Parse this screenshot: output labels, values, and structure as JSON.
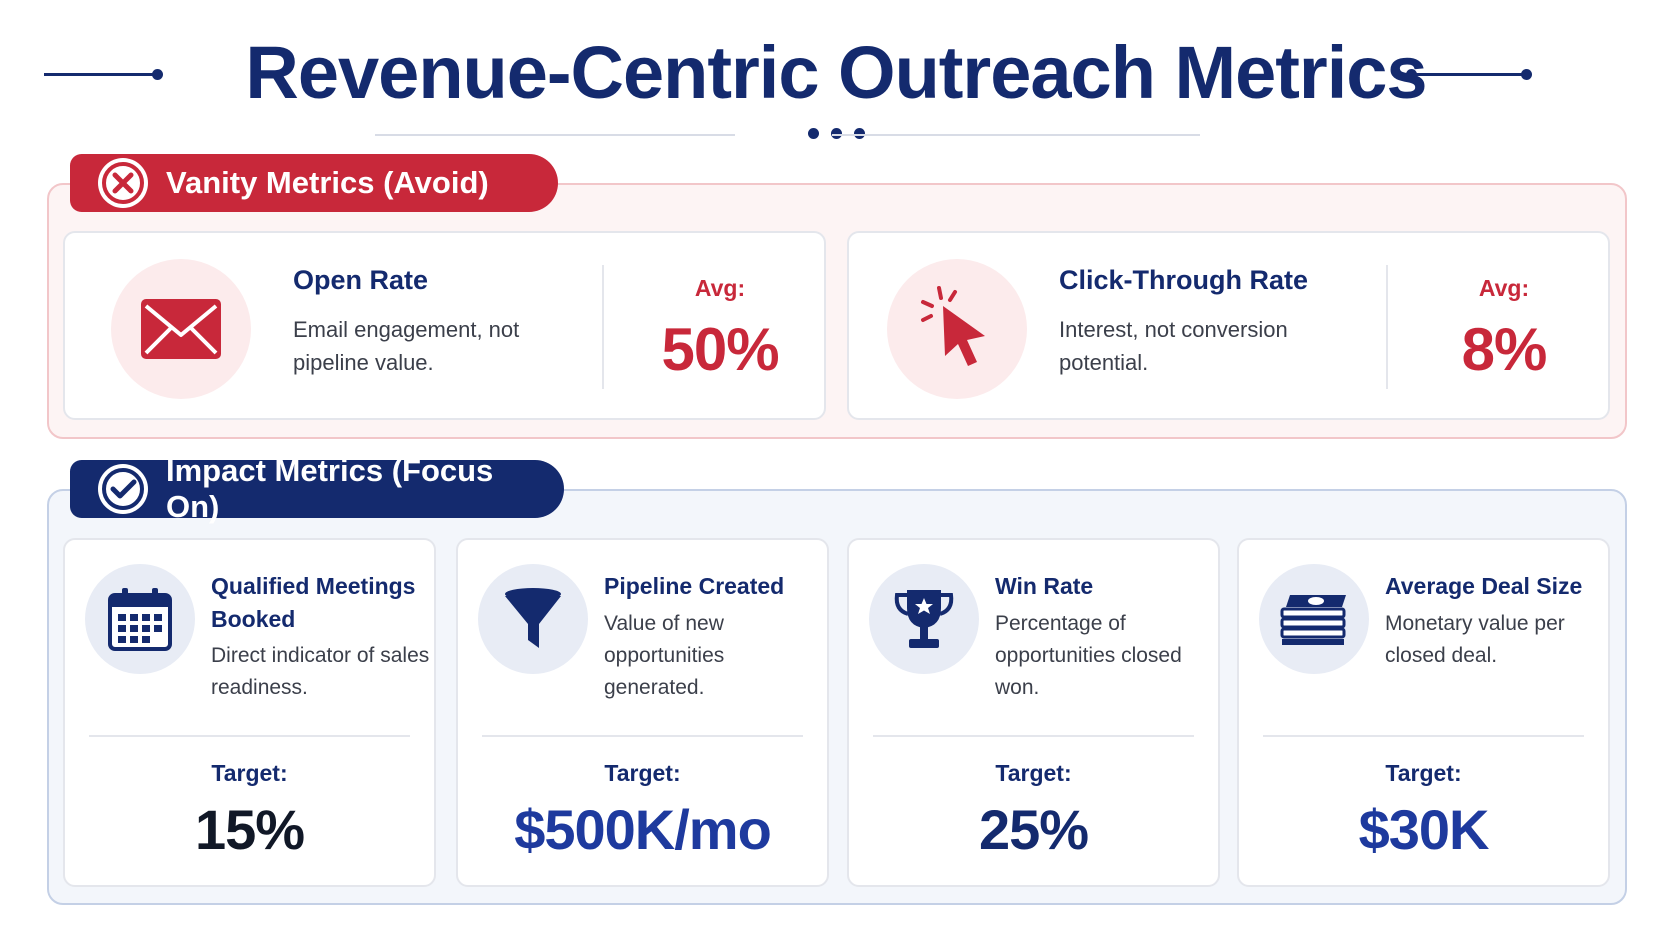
{
  "title": "Revenue-Centric Outreach Metrics",
  "colors": {
    "navy": "#142a6e",
    "red": "#c8283a",
    "black": "#111827",
    "blue": "#1e3a9e"
  },
  "vanity": {
    "heading": "Vanity Metrics (Avoid)",
    "badge_icon": "x-circle-icon",
    "cards": [
      {
        "name": "Open Rate",
        "desc": "Email engagement, not pipeline value.",
        "avg_label": "Avg:",
        "avg_value": "50%",
        "icon": "envelope-icon"
      },
      {
        "name": "Click-Through Rate",
        "desc": "Interest, not conversion potential.",
        "avg_label": "Avg:",
        "avg_value": "8%",
        "icon": "cursor-click-icon"
      }
    ]
  },
  "impact": {
    "heading": "Impact Metrics (Focus On)",
    "badge_icon": "check-circle-icon",
    "cards": [
      {
        "name": "Qualified Meetings Booked",
        "desc": "Direct indicator of sales readiness.",
        "target_label": "Target:",
        "target_value": "15%",
        "icon": "calendar-icon"
      },
      {
        "name": "Pipeline Created",
        "desc": "Value of new opportunities generated.",
        "target_label": "Target:",
        "target_value": "$500K/mo",
        "icon": "funnel-icon"
      },
      {
        "name": "Win Rate",
        "desc": "Percentage of opportunities closed won.",
        "target_label": "Target:",
        "target_value": "25%",
        "icon": "trophy-icon"
      },
      {
        "name": "Average Deal Size",
        "desc": "Monetary value per closed deal.",
        "target_label": "Target:",
        "target_value": "$30K",
        "icon": "money-stack-icon"
      }
    ]
  }
}
